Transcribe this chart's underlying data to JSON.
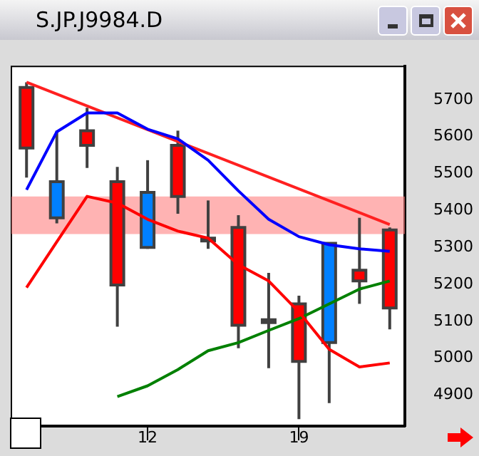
{
  "chart_data": {
    "type": "candlestick",
    "title": "S.JP.J9984.D",
    "categories": [
      null,
      null,
      null,
      null,
      "12",
      null,
      null,
      null,
      null,
      "19",
      null,
      null,
      null
    ],
    "ohlc": [
      [
        5733,
        5747,
        5489,
        5569
      ],
      [
        5380,
        5616,
        5365,
        5478
      ],
      [
        5616,
        5678,
        5515,
        5576
      ],
      [
        5478,
        5518,
        5085,
        5198
      ],
      [
        5300,
        5536,
        5296,
        5449
      ],
      [
        5576,
        5616,
        5391,
        5438
      ],
      [
        5325,
        5427,
        5296,
        5320
      ],
      [
        5354,
        5387,
        5027,
        5089
      ],
      [
        5104,
        5231,
        4973,
        5102
      ],
      [
        5147,
        5169,
        4835,
        4991
      ],
      [
        5042,
        5311,
        4878,
        5311
      ],
      [
        5238,
        5380,
        5147,
        5209
      ],
      [
        5347,
        5354,
        5078,
        5136
      ]
    ],
    "colors": [
      "#ff0000",
      "#0080ff",
      "#ff0000",
      "#ff0000",
      "#0080ff",
      "#ff0000",
      "#333333",
      "#ff0000",
      "#333333",
      "#ff0000",
      "#0080ff",
      "#ff0000",
      "#ff0000"
    ],
    "series": [
      {
        "type": "line",
        "color": "#0000ff",
        "values": [
          5456,
          5613,
          5664,
          5664,
          5620,
          5594,
          5536,
          5453,
          5376,
          5329,
          5307,
          5296,
          5289
        ]
      },
      {
        "type": "line",
        "color": "#ff0000",
        "values": [
          5191,
          5315,
          5438,
          5420,
          5376,
          5344,
          5325,
          5253,
          5209,
          5125,
          5024,
          4976,
          4987
        ]
      },
      {
        "type": "line",
        "color": "#008000",
        "values": [
          null,
          null,
          null,
          4896,
          4925,
          4969,
          5020,
          5042,
          5075,
          5107,
          5147,
          5187,
          5209
        ]
      },
      {
        "type": "line",
        "color": "#ff2020",
        "values": [
          5747,
          null,
          null,
          null,
          null,
          null,
          null,
          null,
          null,
          null,
          null,
          null,
          5362
        ]
      }
    ],
    "bands": [
      {
        "axis": "y",
        "from": 5336,
        "to": 5438,
        "color": "#ff8080"
      }
    ],
    "ylim": [
      4816,
      5790
    ],
    "yticks": [
      4900,
      5000,
      5100,
      5200,
      5300,
      5400,
      5500,
      5600,
      5700
    ],
    "grid": false,
    "legend": false
  }
}
